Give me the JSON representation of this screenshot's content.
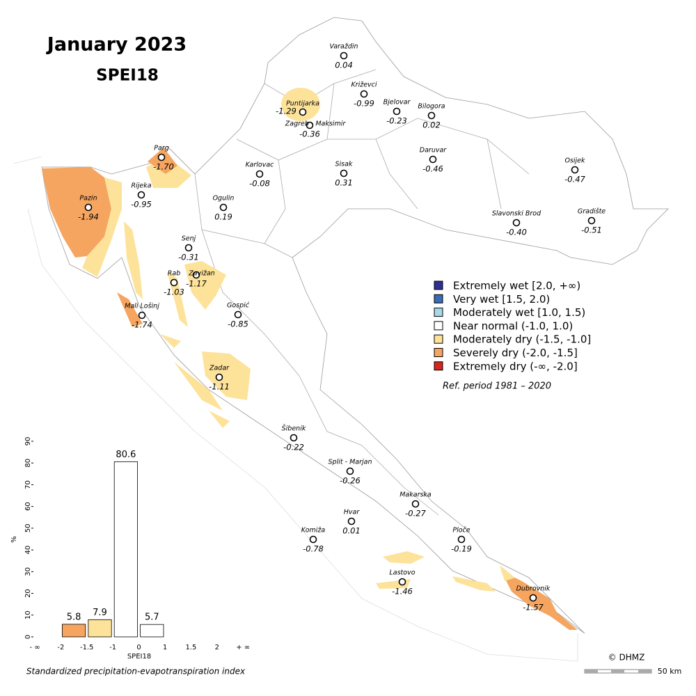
{
  "title": "January 2023",
  "subtitle": "SPEI18",
  "stations": [
    {
      "name": "Varaždin",
      "value": "0.04"
    },
    {
      "name": "Križevci",
      "value": "-0.99"
    },
    {
      "name": "Puntijarka",
      "value": "-1.29"
    },
    {
      "name": "Zagreb - Maksimir",
      "value": "-0.36"
    },
    {
      "name": "Bjelovar",
      "value": "-0.23"
    },
    {
      "name": "Bilogora",
      "value": "0.02"
    },
    {
      "name": "Daruvar",
      "value": "-0.46"
    },
    {
      "name": "Osijek",
      "value": "-0.47"
    },
    {
      "name": "Sisak",
      "value": "0.31"
    },
    {
      "name": "Karlovac",
      "value": "-0.08"
    },
    {
      "name": "Parg",
      "value": "-1.70"
    },
    {
      "name": "Rijeka",
      "value": "-0.95"
    },
    {
      "name": "Pazin",
      "value": "-1.94"
    },
    {
      "name": "Ogulin",
      "value": "0.19"
    },
    {
      "name": "Slavonski Brod",
      "value": "-0.40"
    },
    {
      "name": "Gradište",
      "value": "-0.51"
    },
    {
      "name": "Senj",
      "value": "-0.31"
    },
    {
      "name": "Zavižan",
      "value": "-1.17"
    },
    {
      "name": "Rab",
      "value": "-1.03"
    },
    {
      "name": "Gospić",
      "value": "-0.85"
    },
    {
      "name": "Mali Lošinj",
      "value": "-1.74"
    },
    {
      "name": "Zadar",
      "value": "-1.11"
    },
    {
      "name": "Šibenik",
      "value": "-0.22"
    },
    {
      "name": "Split - Marjan",
      "value": "-0.26"
    },
    {
      "name": "Makarska",
      "value": "-0.27"
    },
    {
      "name": "Hvar",
      "value": "0.01"
    },
    {
      "name": "Komiža",
      "value": "-0.78"
    },
    {
      "name": "Ploče",
      "value": "-0.19"
    },
    {
      "name": "Lastovo",
      "value": "-1.46"
    },
    {
      "name": "Dubrovnik",
      "value": "-1.57"
    }
  ],
  "legend": {
    "items": [
      {
        "label": "Extremely wet [2.0, +∞)",
        "color": "#2d3092"
      },
      {
        "label": "Very wet [1.5, 2.0)",
        "color": "#3a6bb5"
      },
      {
        "label": "Moderately wet [1.0, 1.5)",
        "color": "#a9d8ea"
      },
      {
        "label": "Near normal (-1.0, 1.0)",
        "color": "#ffffff"
      },
      {
        "label": "Moderately dry (-1.5, -1.0]",
        "color": "#fde29a"
      },
      {
        "label": "Severely dry (-2.0, -1.5]",
        "color": "#f5a560"
      },
      {
        "label": "Extremely dry (-∞, -2.0]",
        "color": "#d7261e"
      }
    ],
    "note": "Ref. period 1981 – 2020"
  },
  "chart_data": {
    "type": "bar",
    "bin_edges": [
      "- ∞",
      "-2",
      "-1.5",
      "-1",
      "0",
      "1",
      "1.5",
      "2",
      "+ ∞"
    ],
    "values": [
      0,
      5.8,
      7.9,
      80.6,
      5.7,
      0,
      0,
      0
    ],
    "colors": [
      "#d7261e",
      "#f5a560",
      "#fde29a",
      "#ffffff",
      "#ffffff",
      "#a9d8ea",
      "#3a6bb5",
      "#2d3092"
    ],
    "ylim": [
      0,
      90
    ],
    "yticks": [
      0,
      10,
      20,
      30,
      40,
      50,
      60,
      70,
      80,
      90
    ],
    "ylabel": "%",
    "xlabel": "SPEI18",
    "caption": "Standardized precipitation-evapotranspiration index"
  },
  "credit": "© DHMZ",
  "scale_label": "50 km"
}
